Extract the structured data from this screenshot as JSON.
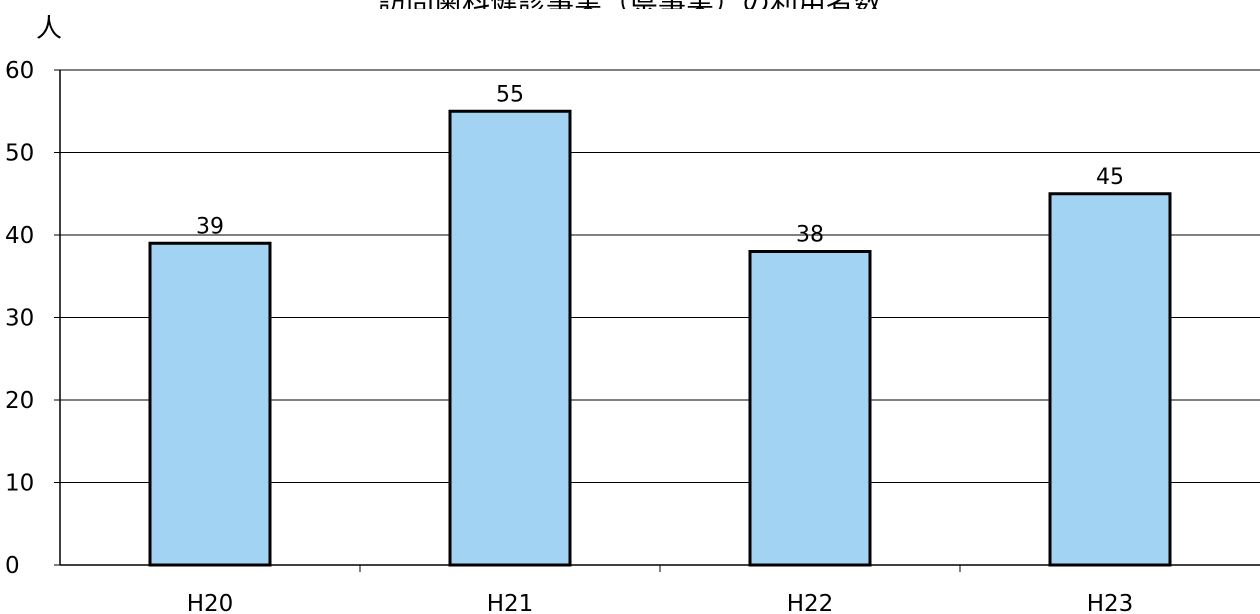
{
  "chart_data": {
    "type": "bar",
    "title": "訪問歯科健診事業（県事業）の利用者数",
    "ylabel": "人",
    "xlabel": "",
    "categories": [
      "H20",
      "H21",
      "H22",
      "H23"
    ],
    "values": [
      39,
      55,
      38,
      45
    ],
    "data_labels": [
      "39",
      "55",
      "38",
      "45"
    ],
    "ylim": [
      0,
      60
    ],
    "yticks": [
      0,
      10,
      20,
      30,
      40,
      50,
      60
    ],
    "grid": true,
    "legend": "none",
    "bar_color": "#A3D3F2",
    "bar_edge_color": "#000000"
  }
}
